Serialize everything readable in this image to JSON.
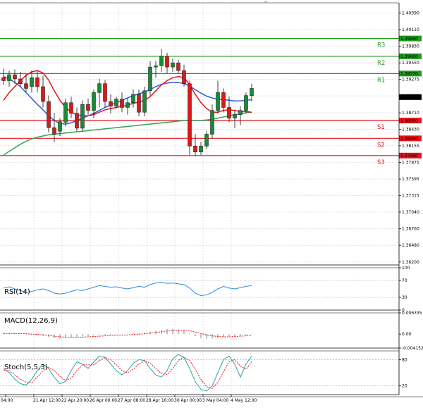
{
  "colors": {
    "bull": "#1a8a36",
    "bear": "#d61a1a",
    "ma_fast": "#e8141b",
    "ma_mid": "#2e5ee0",
    "ma_slow": "#31a35a",
    "resistance": "#1f9a1f",
    "support": "#e8141b",
    "osc": "#2e8ae0",
    "macd_signal": "#e8141b",
    "stoch_k": "#27a6a6",
    "stoch_d": "#e8141b",
    "grid": "#cccccc"
  },
  "chart_data": {
    "type": "candlestick",
    "price_axis": {
      "ylim": [
        1.3615,
        1.4056
      ],
      "ticks": [
        1.4039,
        1.4011,
        1.3983,
        1.3955,
        1.39275,
        1.38995,
        1.3871,
        1.3843,
        1.38155,
        1.37875,
        1.37595,
        1.37315,
        1.3704,
        1.3676,
        1.3648,
        1.362
      ],
      "tick_labels": [
        "1.40390",
        "1.40110",
        "1.39830",
        "1.39550",
        "1.39275",
        "1.38995",
        "1.38710",
        "1.38430",
        "1.38155",
        "1.37875",
        "1.37595",
        "1.37315",
        "1.37040",
        "1.36760",
        "1.36480",
        "1.36200"
      ],
      "current_price_label": "1.38974",
      "current_price": 1.38974
    },
    "time_labels": [
      "04:00",
      "21 Apr 12:00",
      "22 Apr 20:00",
      "26 Apr 00:00",
      "27 Apr 08:00",
      "28 Apr 16:00",
      "30 Apr 00:00",
      "3 May 04:00",
      "4 May 12:00"
    ],
    "levels": [
      {
        "name": "R3",
        "price": 1.3996,
        "label": "1.39960",
        "kind": "resistance"
      },
      {
        "name": "R2",
        "price": 1.3966,
        "label": "1.39660",
        "kind": "resistance"
      },
      {
        "name": "R1",
        "price": 1.3937,
        "label": "1.39370",
        "kind": "resistance"
      },
      {
        "name": "S1",
        "price": 1.3858,
        "label": "1.38580",
        "kind": "support"
      },
      {
        "name": "S2",
        "price": 1.3828,
        "label": "1.38280",
        "kind": "support"
      },
      {
        "name": "S3",
        "price": 1.3799,
        "label": "1.37990",
        "kind": "support"
      }
    ],
    "candles": [
      {
        "o": 1.393,
        "h": 1.3945,
        "l": 1.3918,
        "c": 1.3925
      },
      {
        "o": 1.3925,
        "h": 1.3942,
        "l": 1.3915,
        "c": 1.3935
      },
      {
        "o": 1.3935,
        "h": 1.3944,
        "l": 1.392,
        "c": 1.3928
      },
      {
        "o": 1.3928,
        "h": 1.394,
        "l": 1.3915,
        "c": 1.392
      },
      {
        "o": 1.392,
        "h": 1.3936,
        "l": 1.3906,
        "c": 1.3912
      },
      {
        "o": 1.3915,
        "h": 1.3942,
        "l": 1.3905,
        "c": 1.393
      },
      {
        "o": 1.393,
        "h": 1.3942,
        "l": 1.3905,
        "c": 1.3915
      },
      {
        "o": 1.3915,
        "h": 1.3933,
        "l": 1.388,
        "c": 1.389
      },
      {
        "o": 1.389,
        "h": 1.39,
        "l": 1.3838,
        "c": 1.3846
      },
      {
        "o": 1.3846,
        "h": 1.387,
        "l": 1.3822,
        "c": 1.3835
      },
      {
        "o": 1.384,
        "h": 1.3862,
        "l": 1.3832,
        "c": 1.3856
      },
      {
        "o": 1.3855,
        "h": 1.3895,
        "l": 1.3848,
        "c": 1.3888
      },
      {
        "o": 1.3888,
        "h": 1.3898,
        "l": 1.3862,
        "c": 1.387
      },
      {
        "o": 1.387,
        "h": 1.388,
        "l": 1.384,
        "c": 1.3845
      },
      {
        "o": 1.3845,
        "h": 1.3892,
        "l": 1.384,
        "c": 1.3885
      },
      {
        "o": 1.3885,
        "h": 1.3895,
        "l": 1.3868,
        "c": 1.3875
      },
      {
        "o": 1.3875,
        "h": 1.391,
        "l": 1.3862,
        "c": 1.3905
      },
      {
        "o": 1.3905,
        "h": 1.3928,
        "l": 1.388,
        "c": 1.392
      },
      {
        "o": 1.392,
        "h": 1.3926,
        "l": 1.388,
        "c": 1.389
      },
      {
        "o": 1.389,
        "h": 1.3902,
        "l": 1.387,
        "c": 1.3882
      },
      {
        "o": 1.3882,
        "h": 1.3898,
        "l": 1.3878,
        "c": 1.3894
      },
      {
        "o": 1.3894,
        "h": 1.3905,
        "l": 1.3872,
        "c": 1.388
      },
      {
        "o": 1.388,
        "h": 1.3895,
        "l": 1.3868,
        "c": 1.3888
      },
      {
        "o": 1.3888,
        "h": 1.391,
        "l": 1.388,
        "c": 1.3902
      },
      {
        "o": 1.3902,
        "h": 1.391,
        "l": 1.3865,
        "c": 1.3872
      },
      {
        "o": 1.3872,
        "h": 1.3915,
        "l": 1.3865,
        "c": 1.3908
      },
      {
        "o": 1.3908,
        "h": 1.3958,
        "l": 1.39,
        "c": 1.3948
      },
      {
        "o": 1.3948,
        "h": 1.3958,
        "l": 1.393,
        "c": 1.395
      },
      {
        "o": 1.395,
        "h": 1.3978,
        "l": 1.394,
        "c": 1.3966
      },
      {
        "o": 1.3966,
        "h": 1.3972,
        "l": 1.3938,
        "c": 1.3948
      },
      {
        "o": 1.3948,
        "h": 1.3962,
        "l": 1.394,
        "c": 1.3955
      },
      {
        "o": 1.3955,
        "h": 1.396,
        "l": 1.3938,
        "c": 1.3942
      },
      {
        "o": 1.3942,
        "h": 1.3952,
        "l": 1.3915,
        "c": 1.392
      },
      {
        "o": 1.392,
        "h": 1.3925,
        "l": 1.38,
        "c": 1.3815
      },
      {
        "o": 1.3815,
        "h": 1.3835,
        "l": 1.3798,
        "c": 1.3805
      },
      {
        "o": 1.3805,
        "h": 1.3822,
        "l": 1.38,
        "c": 1.3815
      },
      {
        "o": 1.3815,
        "h": 1.384,
        "l": 1.381,
        "c": 1.3835
      },
      {
        "o": 1.3835,
        "h": 1.3885,
        "l": 1.3828,
        "c": 1.3875
      },
      {
        "o": 1.3875,
        "h": 1.3925,
        "l": 1.387,
        "c": 1.3905
      },
      {
        "o": 1.3905,
        "h": 1.3912,
        "l": 1.3872,
        "c": 1.388
      },
      {
        "o": 1.388,
        "h": 1.3898,
        "l": 1.3855,
        "c": 1.3862
      },
      {
        "o": 1.3862,
        "h": 1.3876,
        "l": 1.3845,
        "c": 1.3868
      },
      {
        "o": 1.3868,
        "h": 1.3882,
        "l": 1.385,
        "c": 1.3875
      },
      {
        "o": 1.3875,
        "h": 1.3905,
        "l": 1.387,
        "c": 1.39
      },
      {
        "o": 1.39,
        "h": 1.392,
        "l": 1.389,
        "c": 1.3912
      }
    ],
    "ma_fast": [
      1.3892,
      1.3905,
      1.3915,
      1.3925,
      1.3934,
      1.394,
      1.3942,
      1.3938,
      1.3926,
      1.3908,
      1.3892,
      1.388,
      1.3872,
      1.3868,
      1.3866,
      1.3866,
      1.3868,
      1.3872,
      1.3876,
      1.3878,
      1.388,
      1.3882,
      1.3884,
      1.3887,
      1.3889,
      1.3892,
      1.3898,
      1.3908,
      1.3918,
      1.3925,
      1.393,
      1.3932,
      1.393,
      1.3918,
      1.3902,
      1.3888,
      1.3878,
      1.3872,
      1.3872,
      1.3875,
      1.3876,
      1.3875,
      1.3873,
      1.3873,
      1.3872
    ],
    "ma_mid": [
      1.3932,
      1.3928,
      1.3922,
      1.3915,
      1.3905,
      1.3895,
      1.3885,
      1.3876,
      1.3866,
      1.3858,
      1.3853,
      1.3852,
      1.3854,
      1.3858,
      1.3862,
      1.3866,
      1.387,
      1.3875,
      1.388,
      1.3884,
      1.3888,
      1.3892,
      1.3896,
      1.39,
      1.3903,
      1.3906,
      1.391,
      1.3915,
      1.3919,
      1.3921,
      1.3922,
      1.3922,
      1.392,
      1.3916,
      1.391,
      1.3904,
      1.3899,
      1.3896,
      1.3894,
      1.3893,
      1.3892,
      1.3891,
      1.3891,
      1.3892,
      1.3893
    ],
    "ma_slow": [
      1.38,
      1.3806,
      1.3812,
      1.3818,
      1.3823,
      1.3827,
      1.383,
      1.3832,
      1.3834,
      1.3835,
      1.3836,
      1.3837,
      1.3838,
      1.3839,
      1.384,
      1.3841,
      1.3842,
      1.3843,
      1.3844,
      1.3845,
      1.3846,
      1.3847,
      1.3848,
      1.3849,
      1.385,
      1.3851,
      1.3852,
      1.3853,
      1.3854,
      1.3855,
      1.3856,
      1.3857,
      1.3858,
      1.3858,
      1.3858,
      1.3858,
      1.3859,
      1.386,
      1.3862,
      1.3864,
      1.3866,
      1.3868,
      1.3869,
      1.3871,
      1.3872
    ],
    "indicators": {
      "rsi": {
        "name": "RSI(14)",
        "ticks": [
          100,
          70,
          30,
          0
        ],
        "tick_labels": [
          "100",
          "70",
          "30",
          "0"
        ],
        "range": [
          0,
          100
        ],
        "values": [
          52,
          55,
          50,
          46,
          42,
          44,
          48,
          50,
          46,
          40,
          38,
          40,
          44,
          48,
          46,
          50,
          54,
          58,
          56,
          54,
          55,
          52,
          50,
          53,
          56,
          54,
          60,
          64,
          66,
          63,
          64,
          62,
          60,
          52,
          40,
          34,
          36,
          42,
          50,
          56,
          52,
          50,
          53,
          56,
          58
        ]
      },
      "macd": {
        "name": "MACD(12,26,9)",
        "ticks": [
          0.006335,
          0.0,
          -0.004152
        ],
        "tick_labels": [
          "0.006335",
          "0.00",
          "-0.004152"
        ],
        "range": [
          -0.004152,
          0.006335
        ],
        "histogram": [
          0.0004,
          0.0004,
          0.0003,
          0.0001,
          -0.0001,
          -0.0002,
          -0.0003,
          -0.0005,
          -0.0009,
          -0.0012,
          -0.0013,
          -0.0011,
          -0.0009,
          -0.0008,
          -0.0007,
          -0.0006,
          -0.0004,
          -0.0002,
          -0.0002,
          -0.0002,
          -0.0001,
          -0.0001,
          0.0,
          0.0002,
          0.0002,
          0.0004,
          0.0007,
          0.001,
          0.0013,
          0.0015,
          0.0016,
          0.0015,
          0.0012,
          0.0003,
          -0.0006,
          -0.0012,
          -0.0014,
          -0.0013,
          -0.001,
          -0.0008,
          -0.0007,
          -0.0006,
          -0.0005,
          -0.0003,
          -0.0002
        ],
        "signal": [
          0.0002,
          0.0002,
          0.0002,
          0.0002,
          0.0001,
          0.0,
          -0.0001,
          -0.0002,
          -0.0004,
          -0.0006,
          -0.0008,
          -0.0009,
          -0.0009,
          -0.0009,
          -0.0009,
          -0.0008,
          -0.0007,
          -0.0006,
          -0.0005,
          -0.0004,
          -0.0003,
          -0.0003,
          -0.0002,
          -0.0001,
          0.0,
          0.0001,
          0.0003,
          0.0005,
          0.0007,
          0.0009,
          0.0011,
          0.0012,
          0.0012,
          0.001,
          0.0006,
          0.0002,
          -0.0002,
          -0.0005,
          -0.0007,
          -0.0008,
          -0.0008,
          -0.0007,
          -0.0006,
          -0.0005,
          -0.0004
        ]
      },
      "stoch": {
        "name": "Stoch(5,5,3)",
        "ticks": [
          80,
          20
        ],
        "tick_labels": [
          "80",
          "20"
        ],
        "range": [
          0,
          100
        ],
        "k": [
          60,
          50,
          35,
          25,
          22,
          35,
          55,
          70,
          60,
          40,
          25,
          30,
          55,
          75,
          70,
          60,
          75,
          88,
          85,
          70,
          55,
          45,
          55,
          72,
          80,
          78,
          60,
          45,
          40,
          55,
          82,
          92,
          85,
          60,
          30,
          12,
          8,
          20,
          50,
          80,
          88,
          70,
          40,
          70,
          88
        ],
        "d": [
          55,
          55,
          45,
          35,
          28,
          27,
          40,
          55,
          62,
          55,
          42,
          32,
          38,
          55,
          68,
          68,
          68,
          78,
          85,
          80,
          68,
          55,
          50,
          58,
          70,
          78,
          72,
          60,
          48,
          46,
          60,
          78,
          86,
          78,
          58,
          35,
          18,
          14,
          28,
          52,
          75,
          80,
          65,
          58,
          75
        ]
      }
    }
  }
}
